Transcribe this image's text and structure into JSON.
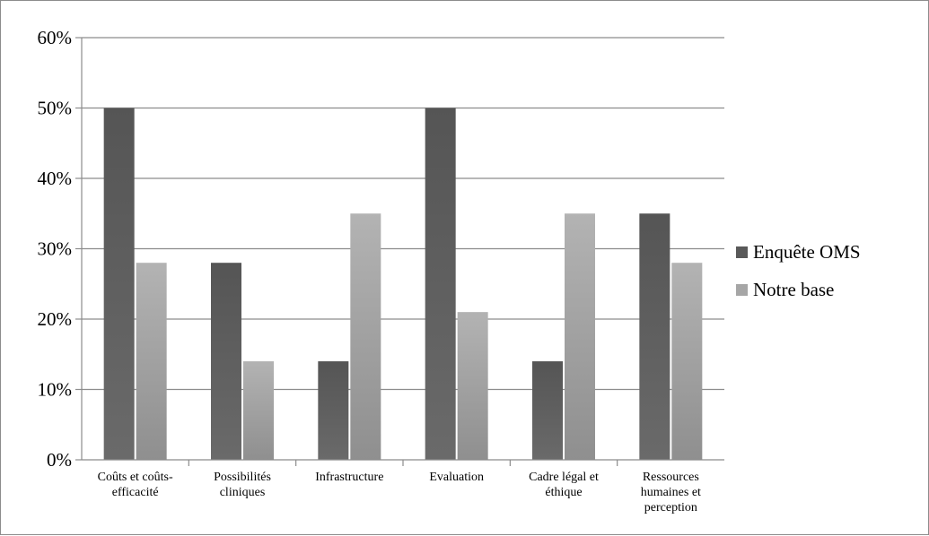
{
  "chart_data": {
    "type": "bar",
    "categories": [
      [
        "Coûts et coûts-",
        "efficacité"
      ],
      [
        "Possibilités",
        "cliniques"
      ],
      [
        "Infrastructure"
      ],
      [
        "Evaluation"
      ],
      [
        "Cadre légal et",
        "éthique"
      ],
      [
        "Ressources",
        "humaines et",
        "perception"
      ]
    ],
    "series": [
      {
        "name": "Enquête OMS",
        "values": [
          50,
          28,
          14,
          50,
          14,
          35
        ],
        "color": "#595959"
      },
      {
        "name": "Notre base",
        "values": [
          28,
          14,
          35,
          21,
          35,
          28
        ],
        "color": "#a6a6a6"
      }
    ],
    "yticks": [
      "0%",
      "10%",
      "20%",
      "30%",
      "40%",
      "50%",
      "60%"
    ],
    "ylim": [
      0,
      60
    ],
    "grid": true,
    "legend_position": "right"
  }
}
